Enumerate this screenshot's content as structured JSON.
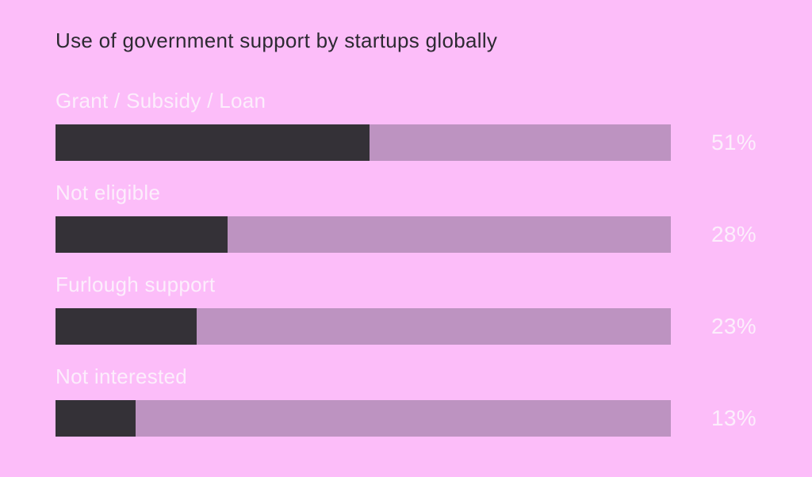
{
  "chart_data": {
    "type": "bar",
    "orientation": "horizontal",
    "title": "Use of government support by startups globally",
    "categories": [
      "Grant / Subsidy / Loan",
      "Not eligible",
      "Furlough support",
      "Not interested"
    ],
    "values": [
      51,
      28,
      23,
      13
    ],
    "value_labels": [
      "51%",
      "28%",
      "23%",
      "13%"
    ],
    "xlabel": "",
    "ylabel": "",
    "xlim": [
      0,
      100
    ],
    "grid": false,
    "legend": false,
    "value_label_position": "right-of-bar",
    "colors": {
      "background": "#fcbdf9",
      "bar_track": "#bd93c1",
      "bar_fill": "#343137",
      "title_text": "#2d2a32",
      "label_text": "#fceefc"
    }
  }
}
